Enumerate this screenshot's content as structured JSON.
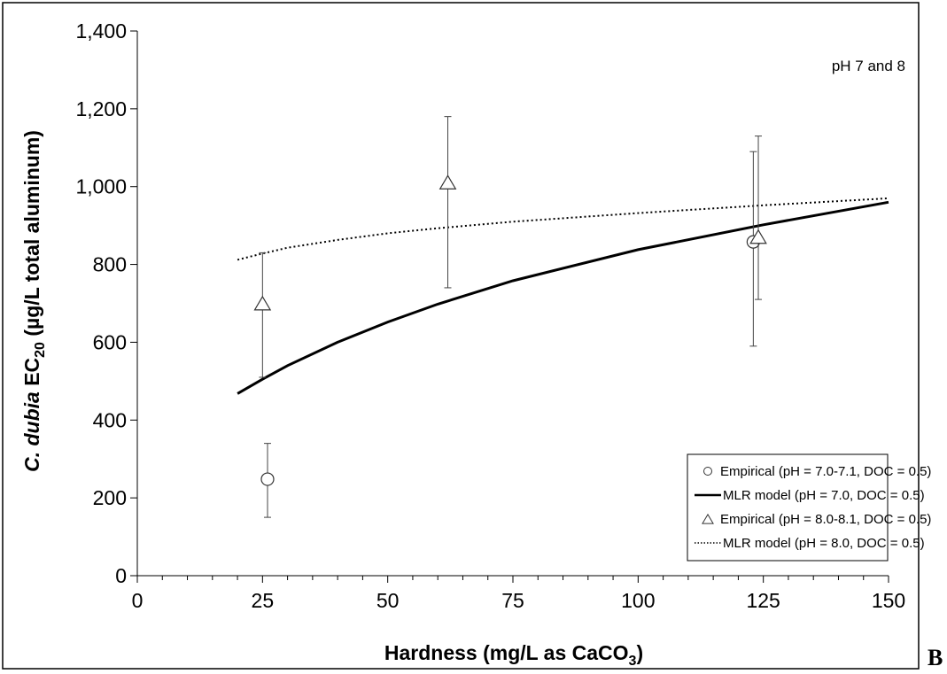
{
  "panel_letter": "B",
  "chart_data": {
    "type": "scatter",
    "title": "",
    "annotation": "pH 7 and 8",
    "xlabel": {
      "main": "Hardness (mg/L as CaCO",
      "sub": "3",
      "end": ")"
    },
    "ylabel": {
      "italic": "C. dubia",
      "main": " EC",
      "sub": "20",
      "end": " (µg/L total aluminum)"
    },
    "xlim": [
      0,
      150
    ],
    "ylim": [
      0,
      1400
    ],
    "xticks": [
      0,
      25,
      50,
      75,
      100,
      125,
      150
    ],
    "xtick_labels": [
      "0",
      "25",
      "50",
      "75",
      "100",
      "125",
      "150"
    ],
    "yticks": [
      0,
      200,
      400,
      600,
      800,
      1000,
      1200,
      1400
    ],
    "ytick_labels": [
      "0",
      "200",
      "400",
      "600",
      "800",
      "1,000",
      "1,200",
      "1,400"
    ],
    "grid": false,
    "legend_position": "bottom-right",
    "series": [
      {
        "name": "Empirical (pH = 7.0-7.1, DOC = 0.5)",
        "kind": "points",
        "marker": "circle",
        "x": [
          26,
          123
        ],
        "y": [
          248,
          858
        ],
        "err_low": [
          150,
          590
        ],
        "err_high": [
          340,
          1090
        ]
      },
      {
        "name": "MLR model (pH = 7.0, DOC = 0.5)",
        "kind": "line",
        "style": "solid",
        "x": [
          20,
          25,
          30,
          40,
          50,
          60,
          75,
          100,
          125,
          150
        ],
        "y": [
          468,
          505,
          540,
          600,
          652,
          698,
          758,
          838,
          902,
          960
        ]
      },
      {
        "name": "Empirical (pH = 8.0-8.1, DOC = 0.5)",
        "kind": "points",
        "marker": "triangle",
        "x": [
          25,
          62,
          124
        ],
        "y": [
          697,
          1008,
          868
        ],
        "err_low": [
          510,
          740,
          710
        ],
        "err_high": [
          830,
          1180,
          1130
        ]
      },
      {
        "name": "MLR model (pH = 8.0, DOC = 0.5)",
        "kind": "line",
        "style": "dotted",
        "x": [
          20,
          25,
          30,
          40,
          50,
          60,
          75,
          100,
          125,
          150
        ],
        "y": [
          812,
          828,
          843,
          863,
          880,
          893,
          910,
          932,
          952,
          970
        ]
      }
    ]
  }
}
